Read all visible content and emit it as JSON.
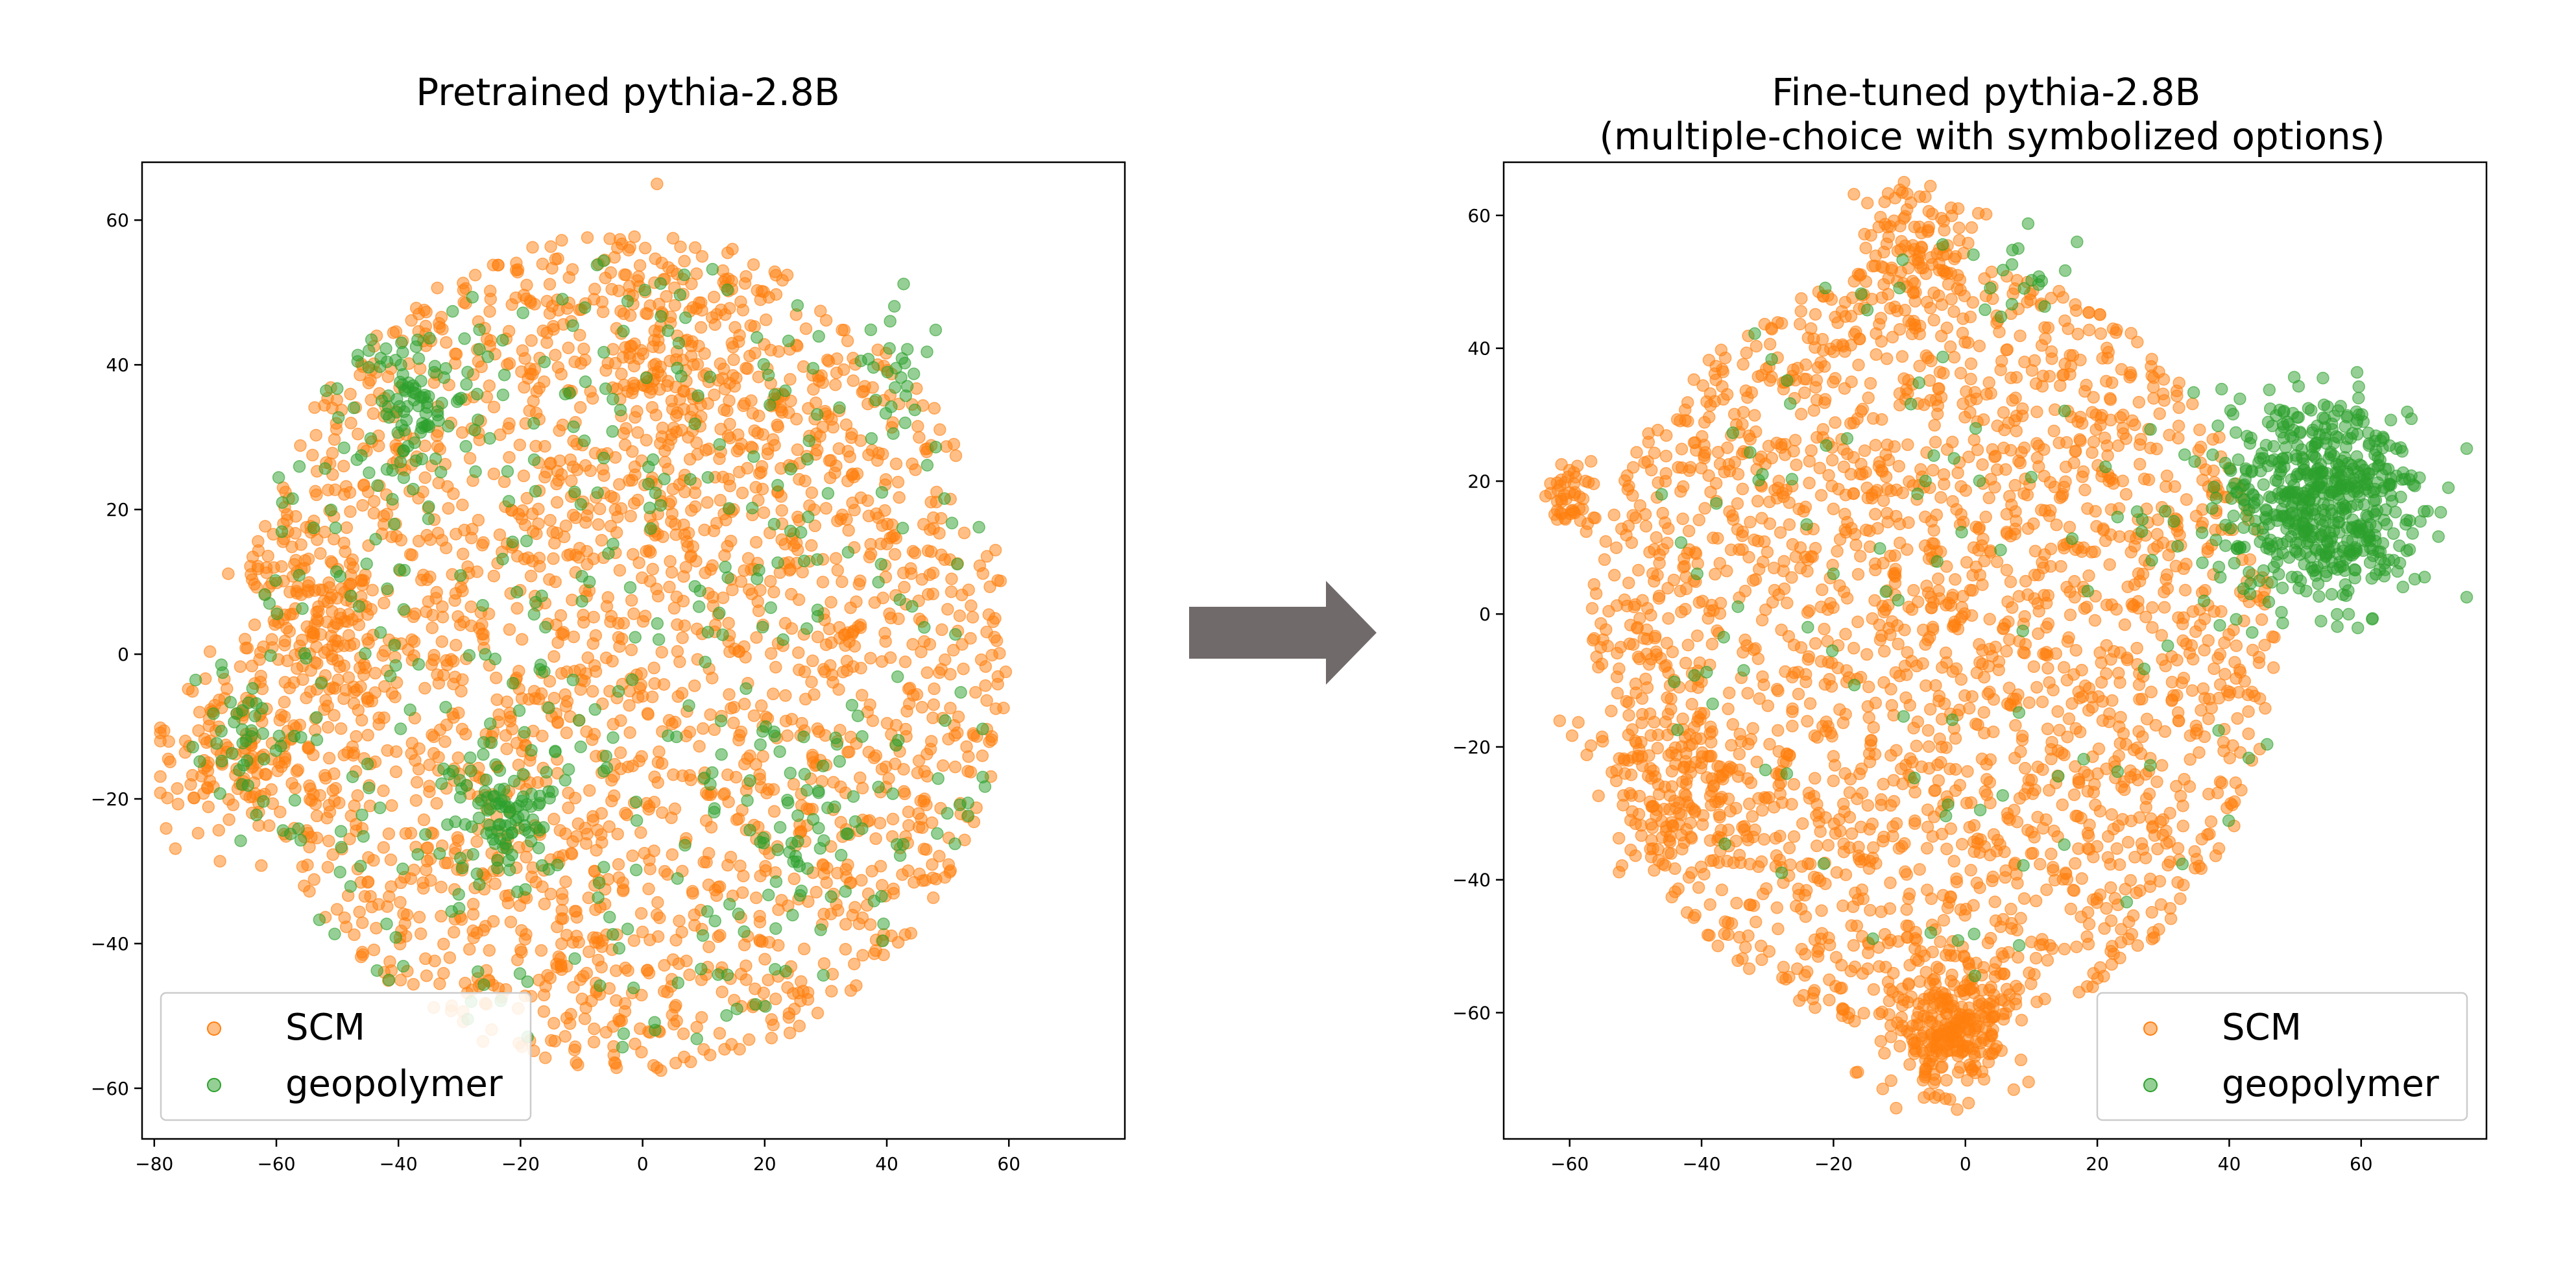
{
  "figure": {
    "arrow_color": "#716a6a"
  },
  "chart_data": [
    {
      "type": "scatter",
      "title": "Pretrained pythia-2.8B",
      "title_lines": [
        "Pretrained pythia-2.8B"
      ],
      "xlabel": "",
      "ylabel": "",
      "xlim": [
        -82,
        79
      ],
      "ylim": [
        -67,
        68
      ],
      "xticks": [
        -80,
        -60,
        -40,
        -20,
        0,
        20,
        40,
        60
      ],
      "yticks": [
        -60,
        -40,
        -20,
        0,
        20,
        40,
        60
      ],
      "grid": false,
      "legend_position": "lower-left",
      "series": [
        {
          "name": "SCM",
          "color": "#ff7f0e",
          "point_count": 2600,
          "distribution": "disc",
          "center": [
            -3,
            0
          ],
          "radius": [
            63,
            58
          ],
          "clusters": [
            {
              "center": [
                -68,
                -15
              ],
              "spread": 6,
              "weight": 0.05
            },
            {
              "center": [
                -52,
                5
              ],
              "spread": 6,
              "weight": 0.04
            },
            {
              "center": [
                10,
                35
              ],
              "spread": 10,
              "weight": 0.05
            }
          ]
        },
        {
          "name": "geopolymer",
          "color": "#2ca02c",
          "point_count": 650,
          "distribution": "disc",
          "center": [
            -5,
            0
          ],
          "radius": [
            65,
            55
          ],
          "clusters": [
            {
              "center": [
                -38,
                33
              ],
              "spread": 5,
              "weight": 0.13
            },
            {
              "center": [
                -22,
                -22
              ],
              "spread": 5,
              "weight": 0.13
            },
            {
              "center": [
                -65,
                -12
              ],
              "spread": 5,
              "weight": 0.06
            },
            {
              "center": [
                28,
                -22
              ],
              "spread": 5,
              "weight": 0.06
            },
            {
              "center": [
                40,
                40
              ],
              "spread": 4,
              "weight": 0.05
            }
          ]
        }
      ]
    },
    {
      "type": "scatter",
      "title": "Fine-tuned pythia-2.8B\n(multiple-choice with symbolized options)",
      "title_lines": [
        "Fine-tuned pythia-2.8B",
        "(multiple-choice with symbolized options)"
      ],
      "xlabel": "",
      "ylabel": "",
      "xlim": [
        -70,
        79
      ],
      "ylim": [
        -79,
        68
      ],
      "xticks": [
        -60,
        -40,
        -20,
        0,
        20,
        40,
        60
      ],
      "yticks": [
        -60,
        -40,
        -20,
        0,
        20,
        40,
        60
      ],
      "grid": false,
      "legend_position": "lower-right",
      "series": [
        {
          "name": "SCM",
          "color": "#ff7f0e",
          "point_count": 2700,
          "distribution": "disc",
          "center": [
            -5,
            -5
          ],
          "radius": [
            52,
            58
          ],
          "clusters": [
            {
              "center": [
                -2,
                -63
              ],
              "spread": 4.5,
              "weight": 0.08
            },
            {
              "center": [
                -60,
                18
              ],
              "spread": 2.5,
              "weight": 0.02
            },
            {
              "center": [
                -8,
                55
              ],
              "spread": 5,
              "weight": 0.04
            },
            {
              "center": [
                -45,
                -25
              ],
              "spread": 6,
              "weight": 0.04
            }
          ]
        },
        {
          "name": "geopolymer",
          "color": "#2ca02c",
          "point_count": 700,
          "distribution": "disc",
          "center": [
            0,
            0
          ],
          "radius": [
            50,
            55
          ],
          "clusters": [
            {
              "center": [
                54,
                17
              ],
              "spread": 7.5,
              "weight": 0.82
            },
            {
              "center": [
                8,
                52
              ],
              "spread": 4,
              "weight": 0.03
            }
          ]
        }
      ]
    }
  ]
}
